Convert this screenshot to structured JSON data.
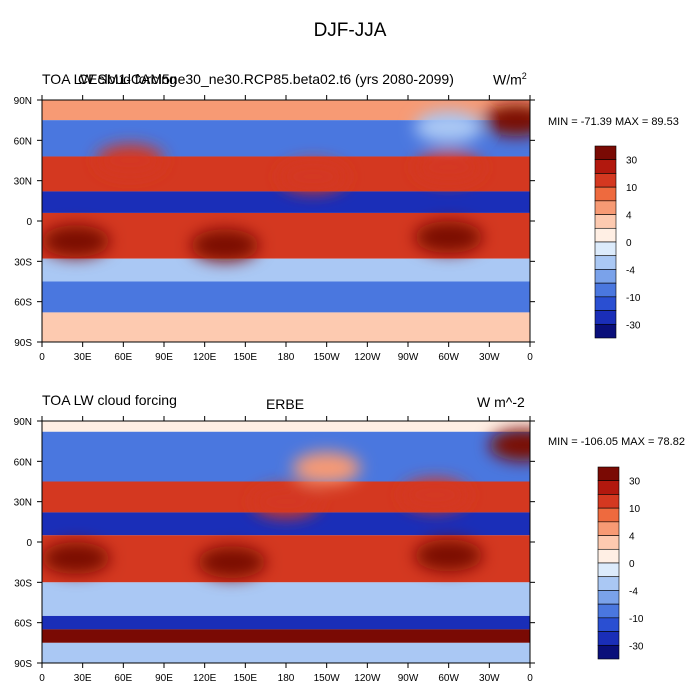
{
  "title": "DJF-JJA",
  "colorbar_levels": [
    "30",
    "10",
    "4",
    "0",
    "-4",
    "-10",
    "-30"
  ],
  "colorbar_colors": [
    "#7a0a04",
    "#b2180e",
    "#d43820",
    "#ee6a3e",
    "#f79a74",
    "#fdcab0",
    "#ffefe4",
    "#dcebfb",
    "#aac8f4",
    "#7aa2ea",
    "#4a77df",
    "#2a4fd2",
    "#1a2eb8",
    "#0a0f7a"
  ],
  "chart_data": [
    {
      "type": "heatmap",
      "title_left": "TOA LW cloud forcing",
      "title_center": "CESM1-CAM5ne30_ne30.RCP85.beta02.t6 (yrs 2080-2099)",
      "units": "W/m",
      "units_exp": "2",
      "min_max": "MIN = -71.39 MAX =  89.53",
      "x_ticks": [
        "0",
        "30E",
        "60E",
        "90E",
        "120E",
        "150E",
        "180",
        "150W",
        "120W",
        "90W",
        "60W",
        "30W",
        "0"
      ],
      "y_ticks": [
        "90N",
        "60N",
        "30N",
        "0",
        "30S",
        "60S",
        "90S"
      ],
      "xlim": [
        0,
        360
      ],
      "ylim": [
        -90,
        90
      ],
      "bands": [
        {
          "lat": [
            90,
            75
          ],
          "value": 4
        },
        {
          "lat": [
            75,
            48
          ],
          "value": -10
        },
        {
          "lat": [
            48,
            22
          ],
          "value": 10
        },
        {
          "lat": [
            22,
            6
          ],
          "value": -30
        },
        {
          "lat": [
            6,
            -28
          ],
          "value": 10
        },
        {
          "lat": [
            -28,
            -45
          ],
          "value": -4
        },
        {
          "lat": [
            -45,
            -68
          ],
          "value": -10
        },
        {
          "lat": [
            -68,
            -90
          ],
          "value": 2
        }
      ],
      "blobs": [
        {
          "lon": 25,
          "lat": -15,
          "value": 40
        },
        {
          "lon": 300,
          "lat": -12,
          "value": 40
        },
        {
          "lon": 135,
          "lat": -18,
          "value": 30
        },
        {
          "lon": 200,
          "lat": 33,
          "value": 15
        },
        {
          "lon": 300,
          "lat": 40,
          "value": 12
        },
        {
          "lon": 350,
          "lat": 75,
          "value": 40
        },
        {
          "lon": 65,
          "lat": 45,
          "value": 15
        },
        {
          "lon": 300,
          "lat": 70,
          "value": -4
        }
      ]
    },
    {
      "type": "heatmap",
      "title_left": "TOA LW cloud forcing",
      "title_center": "ERBE",
      "units": "W m^-2",
      "units_exp": "",
      "min_max": "MIN = -106.05 MAX =  78.82",
      "x_ticks": [
        "0",
        "30E",
        "60E",
        "90E",
        "120E",
        "150E",
        "180",
        "150W",
        "120W",
        "90W",
        "60W",
        "30W",
        "0"
      ],
      "y_ticks": [
        "90N",
        "60N",
        "30N",
        "0",
        "30S",
        "60S",
        "90S"
      ],
      "xlim": [
        0,
        360
      ],
      "ylim": [
        -90,
        90
      ],
      "bands": [
        {
          "lat": [
            90,
            82
          ],
          "value": 0
        },
        {
          "lat": [
            82,
            45
          ],
          "value": -10
        },
        {
          "lat": [
            45,
            22
          ],
          "value": 10
        },
        {
          "lat": [
            22,
            5
          ],
          "value": -30
        },
        {
          "lat": [
            5,
            -30
          ],
          "value": 10
        },
        {
          "lat": [
            -30,
            -55
          ],
          "value": -4
        },
        {
          "lat": [
            -55,
            -65
          ],
          "value": -30
        },
        {
          "lat": [
            -65,
            -75
          ],
          "value": 30
        },
        {
          "lat": [
            -75,
            -90
          ],
          "value": -4
        }
      ],
      "blobs": [
        {
          "lon": 25,
          "lat": -12,
          "value": 40
        },
        {
          "lon": 300,
          "lat": -10,
          "value": 40
        },
        {
          "lon": 140,
          "lat": -15,
          "value": 30
        },
        {
          "lon": 180,
          "lat": 30,
          "value": 15
        },
        {
          "lon": 290,
          "lat": 35,
          "value": 12
        },
        {
          "lon": 355,
          "lat": 72,
          "value": 40
        },
        {
          "lon": 210,
          "lat": 55,
          "value": 4
        }
      ]
    }
  ]
}
